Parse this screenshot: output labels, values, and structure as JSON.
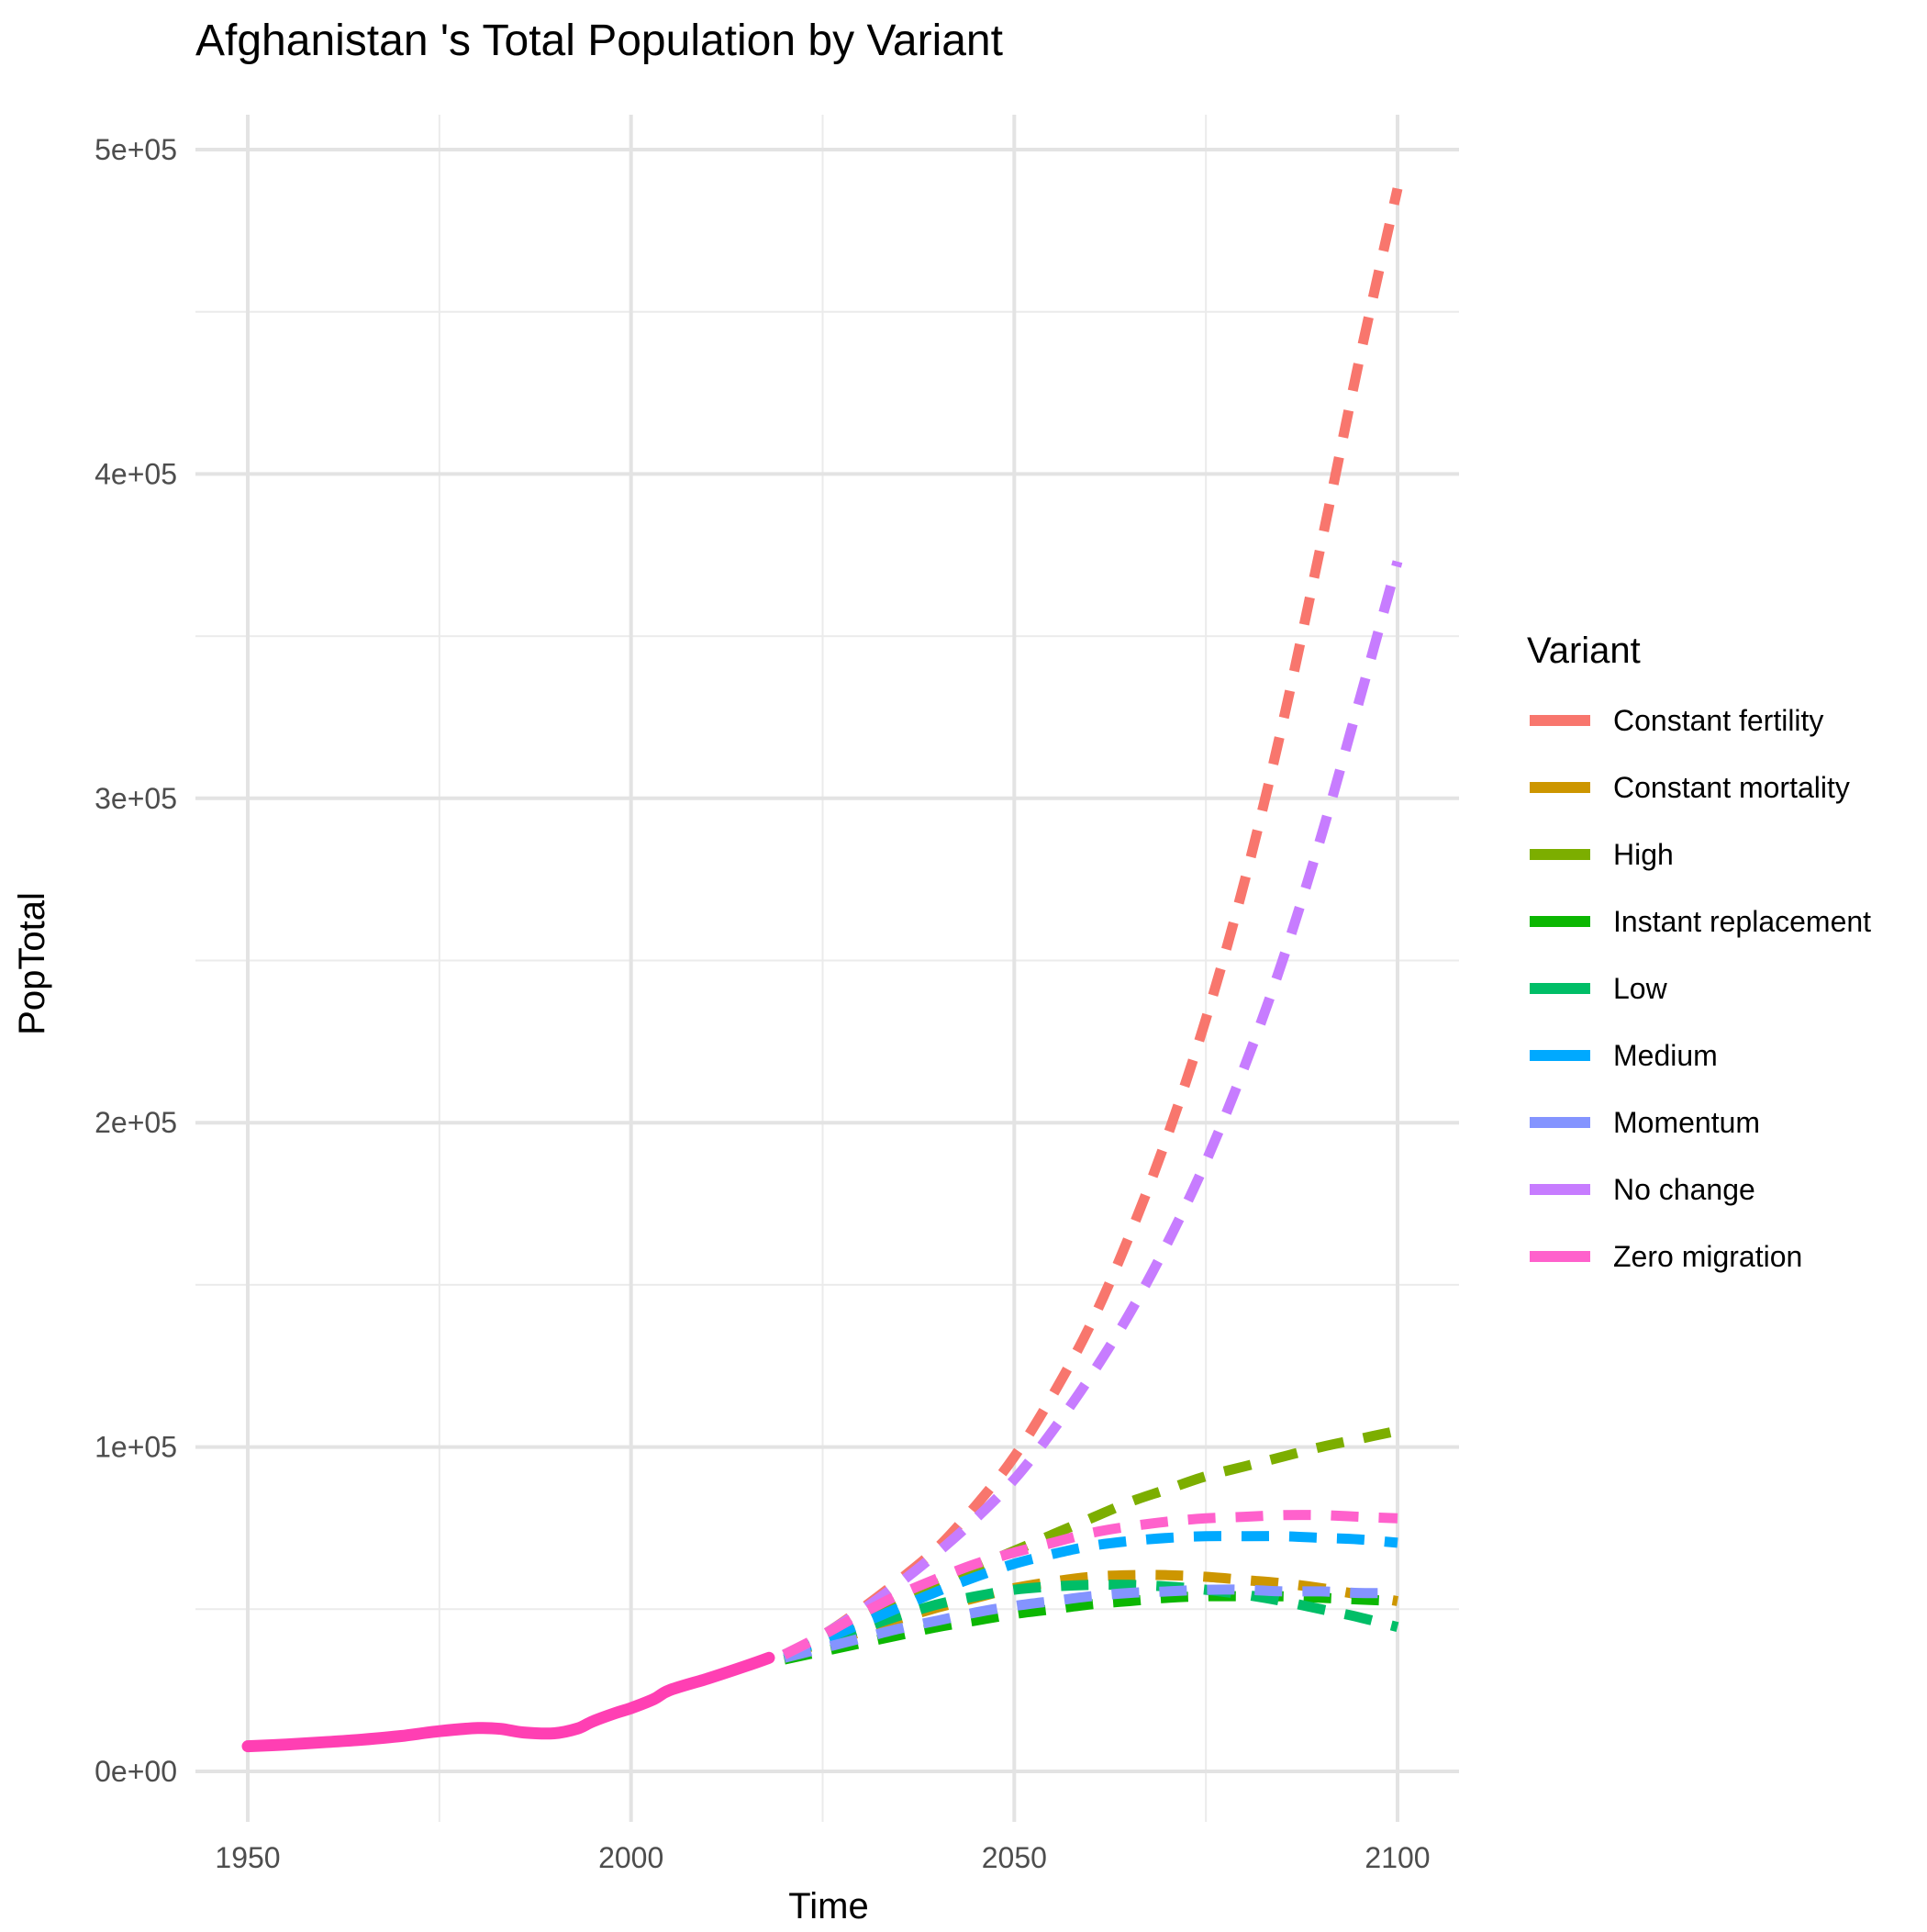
{
  "chart_data": {
    "type": "line",
    "title": "Afghanistan 's Total Population by Variant",
    "xlabel": "Time",
    "ylabel": "PopTotal",
    "xlim": [
      1950,
      2100
    ],
    "ylim": [
      0,
      500000
    ],
    "x_ticks": [
      1950,
      2000,
      2050,
      2100
    ],
    "x_tick_labels": [
      "1950",
      "2000",
      "2050",
      "2100"
    ],
    "y_ticks": [
      0,
      100000,
      200000,
      300000,
      400000,
      500000
    ],
    "y_tick_labels": [
      "0e+00",
      "1e+05",
      "2e+05",
      "3e+05",
      "4e+05",
      "5e+05"
    ],
    "grid": true,
    "legend_title": "Variant",
    "legend_position": "right",
    "historical": {
      "name": "Zero migration",
      "style": "solid",
      "color": "#FF3FB3",
      "x": [
        1950,
        1955,
        1960,
        1965,
        1970,
        1975,
        1980,
        1983,
        1986,
        1990,
        1993,
        1995,
        1998,
        2000,
        2003,
        2005,
        2010,
        2015,
        2018
      ],
      "y": [
        7750,
        8270,
        9000,
        9800,
        10900,
        12400,
        13350,
        13100,
        12000,
        11750,
        13200,
        15400,
        18000,
        19500,
        22300,
        25000,
        28600,
        32500,
        35000
      ]
    },
    "series": [
      {
        "name": "Constant fertility",
        "color": "#F8766D",
        "x": [
          2020,
          2025,
          2030,
          2035,
          2040,
          2045,
          2050,
          2055,
          2060,
          2065,
          2070,
          2075,
          2080,
          2085,
          2090,
          2095,
          2100
        ],
        "y": [
          36000,
          42000,
          50000,
          59000,
          69000,
          82000,
          97000,
          116000,
          138000,
          165000,
          196000,
          232000,
          274000,
          323000,
          378000,
          435000,
          488000
        ]
      },
      {
        "name": "Constant mortality",
        "color": "#CD9600",
        "x": [
          2020,
          2025,
          2030,
          2035,
          2040,
          2045,
          2050,
          2055,
          2060,
          2065,
          2070,
          2075,
          2080,
          2085,
          2090,
          2095,
          2100
        ],
        "y": [
          36000,
          39500,
          43000,
          47000,
          50500,
          53500,
          56500,
          58500,
          60000,
          60500,
          60500,
          60000,
          59000,
          58000,
          56500,
          54500,
          52500
        ]
      },
      {
        "name": "High",
        "color": "#7CAE00",
        "x": [
          2020,
          2025,
          2030,
          2035,
          2040,
          2045,
          2050,
          2055,
          2060,
          2065,
          2070,
          2075,
          2080,
          2085,
          2090,
          2095,
          2100
        ],
        "y": [
          36000,
          41000,
          47000,
          53000,
          58000,
          63000,
          68000,
          73000,
          78000,
          83000,
          87000,
          91000,
          94000,
          97000,
          100000,
          102500,
          105000
        ]
      },
      {
        "name": "Instant replacement",
        "color": "#0CB702",
        "x": [
          2020,
          2025,
          2030,
          2035,
          2040,
          2045,
          2050,
          2055,
          2060,
          2065,
          2070,
          2075,
          2080,
          2085,
          2090,
          2095,
          2100
        ],
        "y": [
          34500,
          37000,
          39500,
          42000,
          44500,
          46500,
          48500,
          50000,
          51500,
          52500,
          53500,
          54000,
          54000,
          54000,
          53500,
          53000,
          52500
        ]
      },
      {
        "name": "Low",
        "color": "#00BE67",
        "x": [
          2020,
          2025,
          2030,
          2035,
          2040,
          2045,
          2050,
          2055,
          2060,
          2065,
          2070,
          2075,
          2080,
          2085,
          2090,
          2095,
          2100
        ],
        "y": [
          36000,
          40000,
          44000,
          48000,
          51500,
          54000,
          56000,
          57000,
          57500,
          57500,
          57000,
          56000,
          54500,
          52500,
          50000,
          47500,
          44500
        ]
      },
      {
        "name": "Medium",
        "color": "#00A9FF",
        "x": [
          2020,
          2025,
          2030,
          2035,
          2040,
          2045,
          2050,
          2055,
          2060,
          2065,
          2070,
          2075,
          2080,
          2085,
          2090,
          2095,
          2100
        ],
        "y": [
          36000,
          40500,
          45500,
          50500,
          55500,
          60000,
          64000,
          67000,
          69500,
          71000,
          72000,
          72500,
          72500,
          72500,
          72000,
          71500,
          70500
        ]
      },
      {
        "name": "Momentum",
        "color": "#8494FF",
        "x": [
          2020,
          2025,
          2030,
          2035,
          2040,
          2045,
          2050,
          2055,
          2060,
          2065,
          2070,
          2075,
          2080,
          2085,
          2090,
          2095,
          2100
        ],
        "y": [
          35000,
          38000,
          41000,
          44000,
          46500,
          49000,
          51000,
          52500,
          54000,
          55000,
          55500,
          56000,
          56000,
          55500,
          55500,
          55000,
          55000
        ]
      },
      {
        "name": "No change",
        "color": "#C77CFF",
        "x": [
          2020,
          2025,
          2030,
          2035,
          2040,
          2045,
          2050,
          2055,
          2060,
          2065,
          2070,
          2075,
          2080,
          2085,
          2090,
          2095,
          2100
        ],
        "y": [
          36000,
          42000,
          49500,
          58000,
          67500,
          78000,
          90000,
          105000,
          122000,
          141000,
          163000,
          188000,
          217000,
          250000,
          288000,
          330000,
          373000
        ]
      },
      {
        "name": "Zero migration",
        "color": "#FF61CC",
        "x": [
          2020,
          2025,
          2030,
          2035,
          2040,
          2045,
          2050,
          2055,
          2060,
          2065,
          2070,
          2075,
          2080,
          2085,
          2090,
          2095,
          2100
        ],
        "y": [
          36000,
          42000,
          48500,
          54500,
          59500,
          64000,
          67500,
          70500,
          73500,
          75500,
          77000,
          78000,
          78500,
          79000,
          79000,
          78500,
          78000
        ]
      }
    ]
  }
}
